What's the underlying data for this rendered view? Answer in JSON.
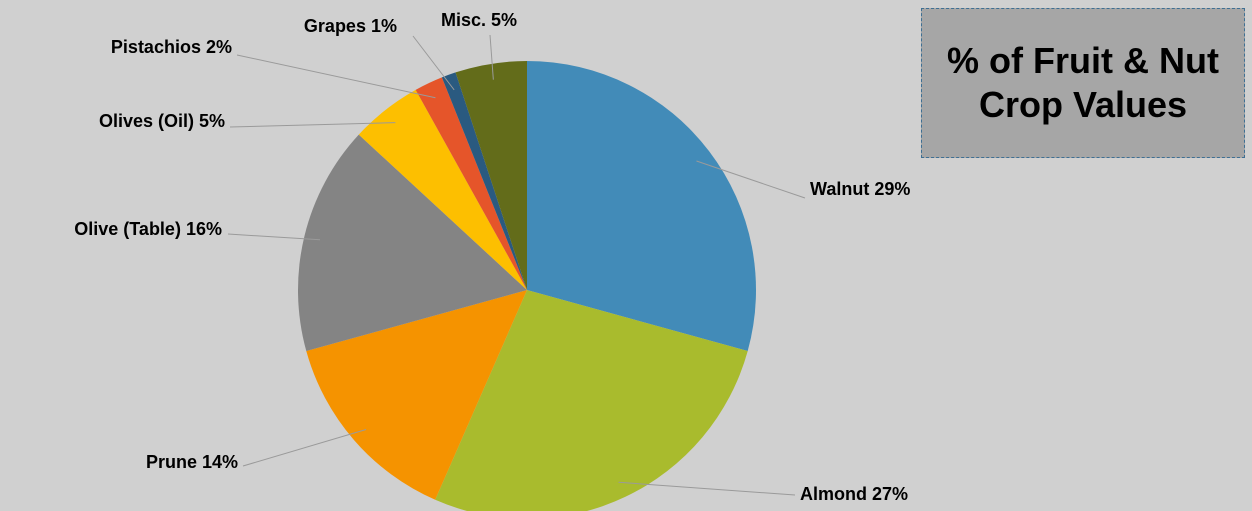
{
  "chart_data": {
    "type": "pie",
    "title": "% of Fruit & Nut Crop Values",
    "categories": [
      "Walnut",
      "Almond",
      "Prune",
      "Olive (Table)",
      "Olives (Oil)",
      "Pistachios",
      "Grapes",
      "Misc."
    ],
    "values": [
      29,
      27,
      14,
      16,
      5,
      2,
      1,
      5
    ],
    "value_labels": [
      "29%",
      "27%",
      "14%",
      "16%",
      "5%",
      "2%",
      "1%",
      "5%"
    ],
    "colors": [
      "#428bb8",
      "#a9bb2d",
      "#f59300",
      "#848484",
      "#fdbf00",
      "#e5552a",
      "#2a5a80",
      "#636c1a"
    ]
  }
}
